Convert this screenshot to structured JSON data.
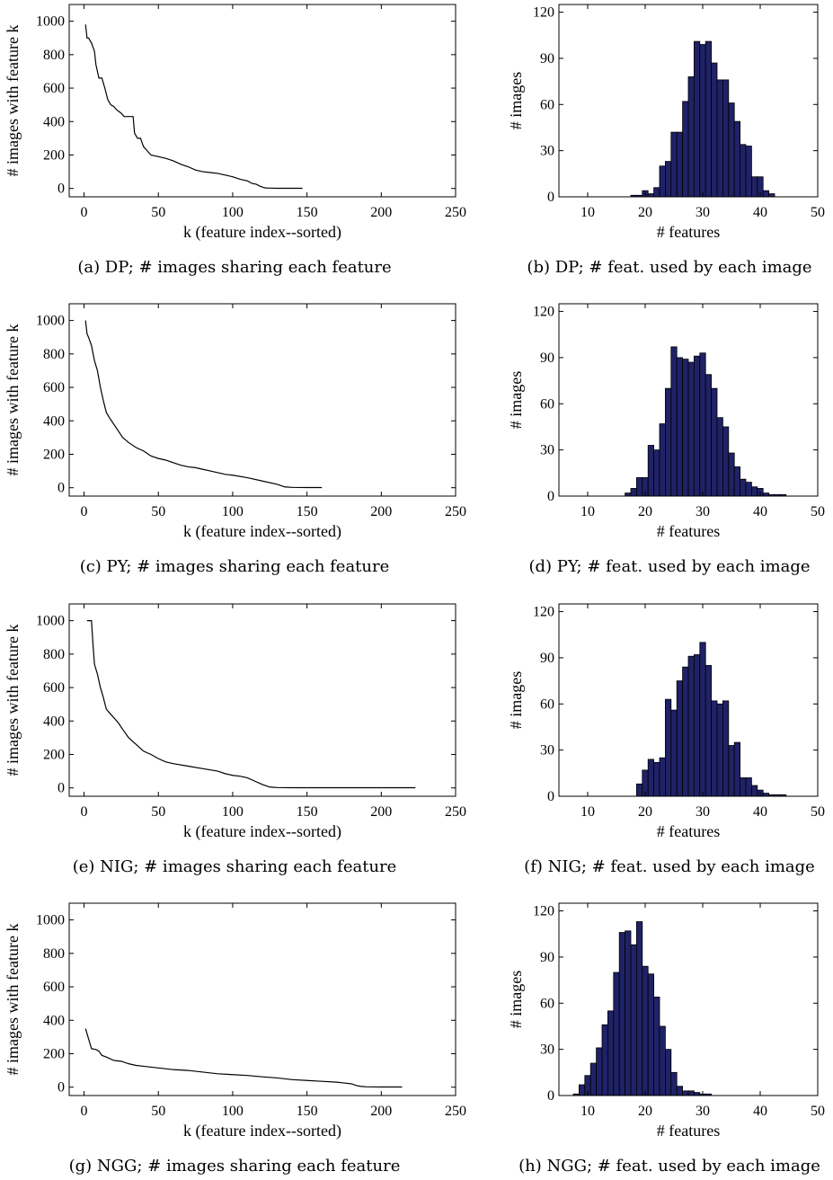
{
  "chart_data": [
    {
      "id": "a",
      "type": "line",
      "caption": "(a) DP; # images sharing each feature",
      "xlabel": "k (feature index--sorted)",
      "ylabel": "# images with feature k",
      "xlim": [
        -10,
        250
      ],
      "ylim": [
        -50,
        1100
      ],
      "xticks": [
        0,
        50,
        100,
        150,
        200,
        250
      ],
      "yticks": [
        0,
        200,
        400,
        600,
        800,
        1000
      ],
      "grid": false,
      "series": [
        {
          "color": "#000000",
          "x": [
            1,
            2,
            3,
            5,
            7,
            8,
            10,
            12,
            14,
            16,
            18,
            20,
            22,
            25,
            27,
            30,
            33,
            34,
            36,
            38,
            40,
            43,
            45,
            50,
            55,
            60,
            65,
            70,
            75,
            80,
            85,
            90,
            95,
            100,
            105,
            110,
            113,
            116,
            118,
            120,
            122,
            125,
            130,
            140,
            147
          ],
          "y": [
            980,
            900,
            900,
            870,
            820,
            740,
            660,
            660,
            600,
            530,
            500,
            490,
            470,
            450,
            430,
            430,
            430,
            330,
            300,
            300,
            250,
            220,
            200,
            190,
            180,
            165,
            145,
            130,
            110,
            100,
            95,
            90,
            80,
            70,
            55,
            45,
            30,
            25,
            15,
            8,
            3,
            2,
            1,
            1,
            1
          ]
        }
      ]
    },
    {
      "id": "b",
      "type": "bar",
      "caption": "(b) DP; # feat. used by each image",
      "xlabel": "# features",
      "ylabel": "# images",
      "xlim": [
        5,
        50
      ],
      "ylim": [
        0,
        125
      ],
      "xticks": [
        10,
        20,
        30,
        40,
        50
      ],
      "yticks": [
        0,
        30,
        60,
        90,
        120
      ],
      "bar_color": "#1f2266",
      "x": [
        18,
        19,
        20,
        21,
        22,
        23,
        24,
        25,
        26,
        27,
        28,
        29,
        30,
        31,
        32,
        33,
        34,
        35,
        36,
        37,
        38,
        39,
        40,
        41,
        42
      ],
      "values": [
        1,
        1,
        4,
        2,
        6,
        20,
        23,
        42,
        42,
        62,
        78,
        101,
        99,
        101,
        87,
        76,
        76,
        61,
        49,
        34,
        33,
        13,
        13,
        4,
        2
      ]
    },
    {
      "id": "c",
      "type": "line",
      "caption": "(c) PY; # images sharing each feature",
      "xlabel": "k (feature index--sorted)",
      "ylabel": "# images with feature k",
      "xlim": [
        -10,
        250
      ],
      "ylim": [
        -50,
        1100
      ],
      "xticks": [
        0,
        50,
        100,
        150,
        200,
        250
      ],
      "yticks": [
        0,
        200,
        400,
        600,
        800,
        1000
      ],
      "grid": false,
      "series": [
        {
          "color": "#000000",
          "x": [
            1,
            2,
            3,
            5,
            7,
            9,
            11,
            13,
            15,
            17,
            20,
            23,
            26,
            30,
            35,
            40,
            45,
            50,
            55,
            60,
            65,
            70,
            75,
            80,
            85,
            90,
            95,
            100,
            110,
            120,
            130,
            135,
            140,
            150,
            160
          ],
          "y": [
            1000,
            920,
            900,
            850,
            760,
            700,
            600,
            520,
            450,
            420,
            380,
            340,
            300,
            270,
            240,
            220,
            190,
            175,
            165,
            150,
            135,
            125,
            120,
            110,
            100,
            90,
            80,
            75,
            60,
            40,
            20,
            5,
            2,
            1,
            1
          ]
        }
      ]
    },
    {
      "id": "d",
      "type": "bar",
      "caption": "(d) PY; # feat. used by each image",
      "xlabel": "# features",
      "ylabel": "# images",
      "xlim": [
        5,
        50
      ],
      "ylim": [
        0,
        125
      ],
      "xticks": [
        10,
        20,
        30,
        40,
        50
      ],
      "yticks": [
        0,
        30,
        60,
        90,
        120
      ],
      "bar_color": "#1f2266",
      "x": [
        17,
        18,
        19,
        20,
        21,
        22,
        23,
        24,
        25,
        26,
        27,
        28,
        29,
        30,
        31,
        32,
        33,
        34,
        35,
        36,
        37,
        38,
        39,
        40,
        41,
        42,
        43,
        44
      ],
      "values": [
        2,
        5,
        12,
        12,
        33,
        30,
        47,
        70,
        97,
        90,
        89,
        87,
        91,
        93,
        79,
        70,
        51,
        45,
        28,
        19,
        11,
        9,
        6,
        5,
        2,
        1,
        1,
        1
      ]
    },
    {
      "id": "e",
      "type": "line",
      "caption": "(e) NIG; # images sharing each feature",
      "xlabel": "k (feature index--sorted)",
      "ylabel": "# images with feature k",
      "xlim": [
        -10,
        250
      ],
      "ylim": [
        -50,
        1100
      ],
      "xticks": [
        0,
        50,
        100,
        150,
        200,
        250
      ],
      "yticks": [
        0,
        200,
        400,
        600,
        800,
        1000
      ],
      "grid": false,
      "series": [
        {
          "color": "#000000",
          "x": [
            2,
            5,
            6,
            7,
            9,
            11,
            13,
            15,
            17,
            20,
            23,
            26,
            30,
            35,
            40,
            45,
            50,
            55,
            60,
            70,
            80,
            90,
            95,
            100,
            105,
            110,
            115,
            120,
            125,
            130,
            140,
            150,
            160,
            180,
            200,
            223
          ],
          "y": [
            1000,
            1000,
            860,
            740,
            680,
            600,
            540,
            470,
            450,
            420,
            390,
            350,
            300,
            260,
            220,
            200,
            175,
            155,
            145,
            130,
            115,
            100,
            85,
            75,
            70,
            60,
            40,
            20,
            5,
            2,
            1,
            1,
            1,
            1,
            1,
            1
          ]
        }
      ]
    },
    {
      "id": "f",
      "type": "bar",
      "caption": "(f) NIG; # feat. used by each image",
      "xlabel": "# features",
      "ylabel": "# images",
      "xlim": [
        5,
        50
      ],
      "ylim": [
        0,
        125
      ],
      "xticks": [
        10,
        20,
        30,
        40,
        50
      ],
      "yticks": [
        0,
        30,
        60,
        90,
        120
      ],
      "bar_color": "#1f2266",
      "x": [
        19,
        20,
        21,
        22,
        23,
        24,
        25,
        26,
        27,
        28,
        29,
        30,
        31,
        32,
        33,
        34,
        35,
        36,
        37,
        38,
        39,
        40,
        41,
        42,
        43,
        44
      ],
      "values": [
        8,
        17,
        24,
        22,
        25,
        63,
        56,
        75,
        84,
        91,
        92,
        100,
        85,
        62,
        60,
        62,
        33,
        35,
        12,
        12,
        7,
        4,
        2,
        1,
        1,
        1
      ]
    },
    {
      "id": "g",
      "type": "line",
      "caption": "(g) NGG; # images sharing each feature",
      "xlabel": "k (feature index--sorted)",
      "ylabel": "# images with feature k",
      "xlim": [
        -10,
        250
      ],
      "ylim": [
        -50,
        1100
      ],
      "xticks": [
        0,
        50,
        100,
        150,
        200,
        250
      ],
      "yticks": [
        0,
        200,
        400,
        600,
        800,
        1000
      ],
      "grid": false,
      "series": [
        {
          "color": "#000000",
          "x": [
            1,
            3,
            5,
            8,
            10,
            12,
            15,
            20,
            25,
            30,
            35,
            40,
            50,
            60,
            70,
            80,
            90,
            100,
            110,
            120,
            130,
            140,
            150,
            160,
            170,
            180,
            183,
            186,
            190,
            200,
            214
          ],
          "y": [
            350,
            290,
            230,
            225,
            215,
            190,
            180,
            160,
            155,
            140,
            130,
            125,
            115,
            105,
            100,
            90,
            80,
            75,
            70,
            62,
            55,
            45,
            40,
            35,
            30,
            20,
            10,
            5,
            2,
            1,
            1
          ]
        }
      ]
    },
    {
      "id": "h",
      "type": "bar",
      "caption": "(h) NGG; # feat. used by each image",
      "xlabel": "# features",
      "ylabel": "# images",
      "xlim": [
        5,
        50
      ],
      "ylim": [
        0,
        125
      ],
      "xticks": [
        10,
        20,
        30,
        40,
        50
      ],
      "yticks": [
        0,
        30,
        60,
        90,
        120
      ],
      "bar_color": "#1f2266",
      "x": [
        8,
        9,
        10,
        11,
        12,
        13,
        14,
        15,
        16,
        17,
        18,
        19,
        20,
        21,
        22,
        23,
        24,
        25,
        26,
        27,
        28,
        29,
        30,
        31
      ],
      "values": [
        1,
        7,
        13,
        21,
        31,
        46,
        55,
        80,
        106,
        107,
        98,
        113,
        84,
        79,
        64,
        45,
        30,
        15,
        6,
        3,
        3,
        2,
        1,
        1
      ]
    }
  ]
}
